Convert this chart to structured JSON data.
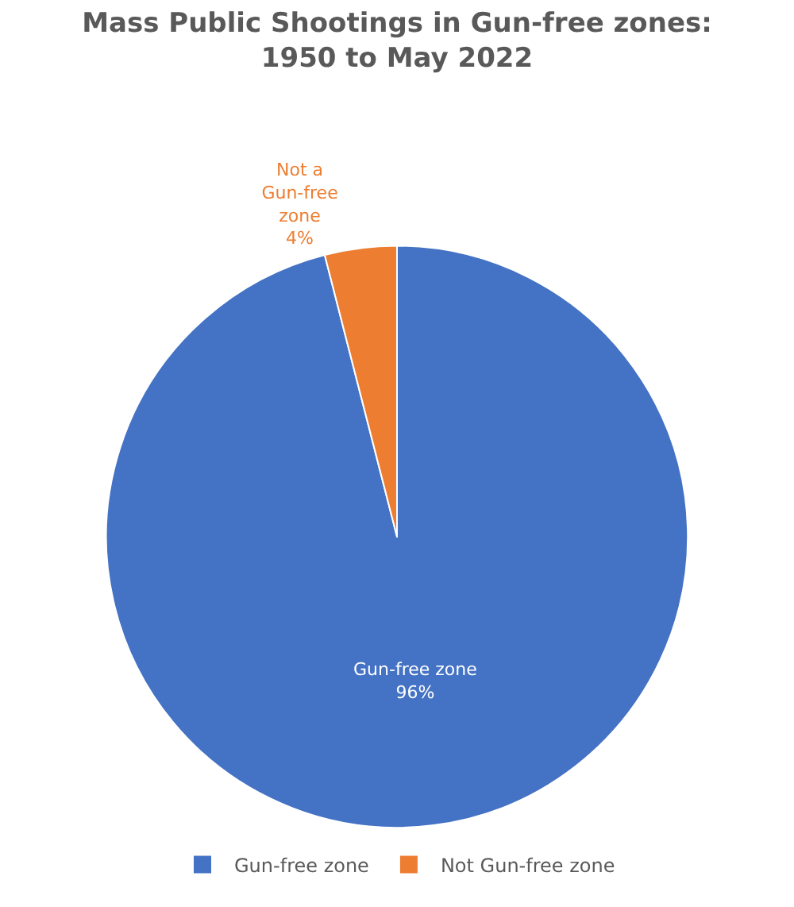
{
  "chart_data": {
    "type": "pie",
    "title": "Mass Public Shootings in Gun-free zones:\n1950 to May 2022",
    "categories": [
      "Gun-free zone",
      "Not Gun-free zone"
    ],
    "values": [
      96,
      4
    ],
    "colors": [
      "#4472c4",
      "#ed7d31"
    ],
    "value_labels": [
      "Gun-free zone\n96%",
      "Not a\nGun-free\nzone\n4%"
    ],
    "legend": "bottom"
  }
}
